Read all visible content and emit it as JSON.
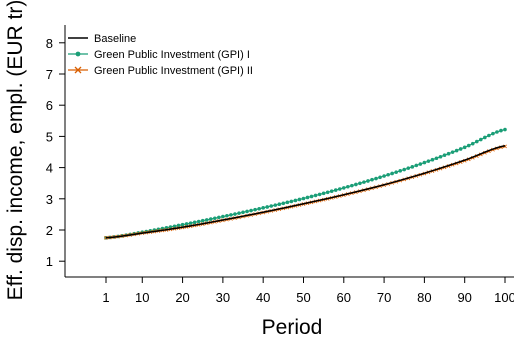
{
  "chart_data": {
    "type": "line",
    "title": "",
    "xlabel": "Period",
    "ylabel": "Eff. disp. income, empl. (EUR tr)",
    "xlim": [
      1,
      100
    ],
    "ylim": [
      0.75,
      8.25
    ],
    "x_ticks": [
      1,
      10,
      20,
      30,
      40,
      50,
      60,
      70,
      80,
      90,
      100
    ],
    "y_ticks": [
      1,
      2,
      3,
      4,
      5,
      6,
      7,
      8
    ],
    "x_sampled": [
      1,
      10,
      20,
      30,
      40,
      50,
      60,
      70,
      80,
      90,
      100
    ],
    "legend_position": "top-left",
    "grid": false,
    "series": [
      {
        "name": "Baseline",
        "color": "#000000",
        "marker": "none",
        "values": [
          1.75,
          1.9,
          2.09,
          2.32,
          2.57,
          2.84,
          3.13,
          3.45,
          3.82,
          4.24,
          4.7
        ]
      },
      {
        "name": "Green Public Investment (GPI) I",
        "color": "#1b9e77",
        "marker": "circle",
        "values": [
          1.75,
          1.93,
          2.17,
          2.43,
          2.71,
          3.01,
          3.35,
          3.73,
          4.16,
          4.65,
          5.22
        ]
      },
      {
        "name": "Green Public Investment (GPI) II",
        "color": "#d95f02",
        "marker": "x",
        "values": [
          1.75,
          1.9,
          2.08,
          2.31,
          2.56,
          2.83,
          3.12,
          3.44,
          3.81,
          4.22,
          4.68
        ]
      }
    ]
  }
}
